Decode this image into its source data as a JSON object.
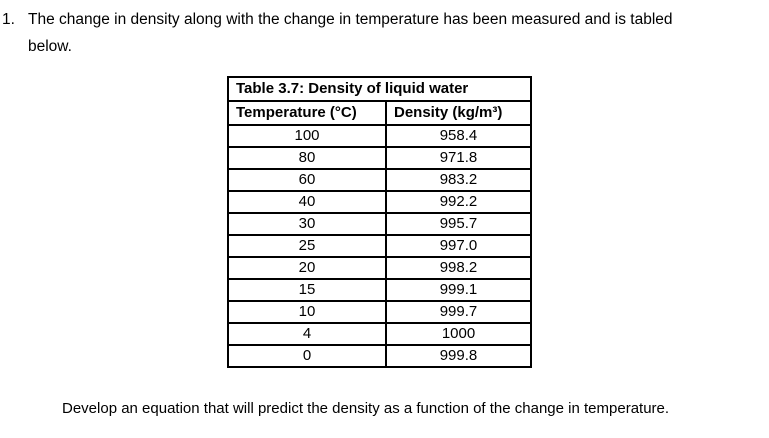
{
  "question": {
    "number": "1.",
    "text": "The change in density along with the change in temperature has been measured and is tabled\nbelow.",
    "instruction": "Develop an equation that will predict the density as a function of the change in temperature."
  },
  "table": {
    "title": "Table 3.7: Density of liquid water",
    "columns": [
      "Temperature (°C)",
      "Density (kg/m³)"
    ],
    "rows": [
      {
        "temperature": "100",
        "density": "958.4"
      },
      {
        "temperature": "80",
        "density": "971.8"
      },
      {
        "temperature": "60",
        "density": "983.2"
      },
      {
        "temperature": "40",
        "density": "992.2"
      },
      {
        "temperature": "30",
        "density": "995.7"
      },
      {
        "temperature": "25",
        "density": "997.0"
      },
      {
        "temperature": "20",
        "density": "998.2"
      },
      {
        "temperature": "15",
        "density": "999.1"
      },
      {
        "temperature": "10",
        "density": "999.7"
      },
      {
        "temperature": "4",
        "density": "1000"
      },
      {
        "temperature": "0",
        "density": "999.8"
      }
    ]
  }
}
